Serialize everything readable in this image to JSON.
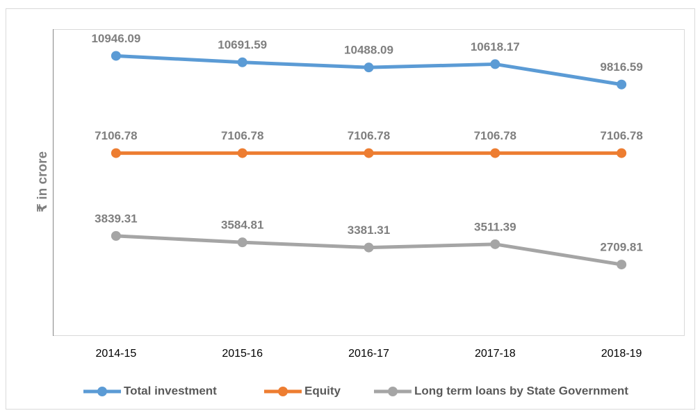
{
  "chart_data": {
    "type": "line",
    "y_label": "₹ in crore",
    "categories": [
      "2014-15",
      "2015-16",
      "2016-17",
      "2017-18",
      "2018-19"
    ],
    "series": [
      {
        "name": "Total investment",
        "color": "#5b9bd5",
        "values": [
          10946.09,
          10691.59,
          10488.09,
          10618.17,
          9816.59
        ]
      },
      {
        "name": "Equity",
        "color": "#ed7d31",
        "values": [
          7106.78,
          7106.78,
          7106.78,
          7106.78,
          7106.78
        ]
      },
      {
        "name": "Long term loans by State Government",
        "color": "#a5a5a5",
        "values": [
          3839.31,
          3584.81,
          3381.31,
          3511.39,
          2709.81
        ]
      }
    ],
    "ylim": [
      0,
      12000
    ]
  }
}
